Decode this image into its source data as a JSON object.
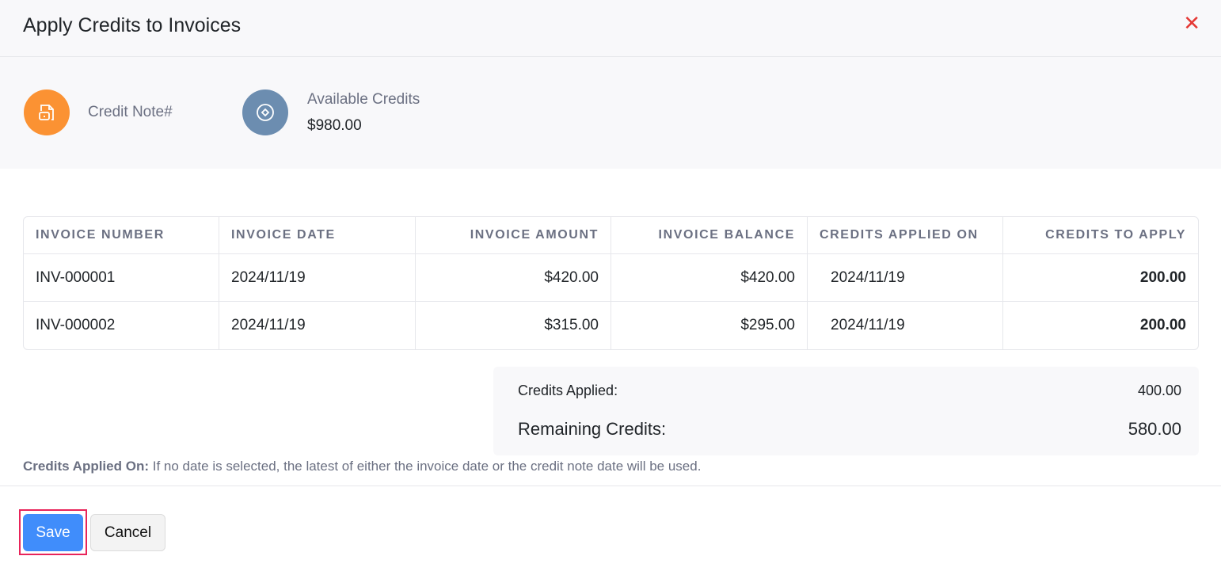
{
  "dialog": {
    "title": "Apply Credits to Invoices",
    "close_icon": "close-icon"
  },
  "info": {
    "credit_note_label": "Credit Note#",
    "available_label": "Available Credits",
    "available_value": "$980.00",
    "colors": {
      "credit_note": "#fb9233",
      "available": "#6c8db0"
    }
  },
  "table": {
    "headers": [
      "INVOICE NUMBER",
      "INVOICE DATE",
      "INVOICE AMOUNT",
      "INVOICE BALANCE",
      "CREDITS APPLIED ON",
      "CREDITS TO APPLY"
    ],
    "rows": [
      [
        "INV-000001",
        "2024/11/19",
        "$420.00",
        "$420.00",
        "2024/11/19",
        "200.00"
      ],
      [
        "INV-000002",
        "2024/11/19",
        "$315.00",
        "$295.00",
        "2024/11/19",
        "200.00"
      ]
    ]
  },
  "summary": {
    "applied_label": "Credits Applied:",
    "applied_value": "400.00",
    "remaining_label": "Remaining Credits:",
    "remaining_value": "580.00"
  },
  "note": {
    "bold": "Credits Applied On:",
    "text": " If no date is selected, the latest of either the invoice date or the credit note date will be used."
  },
  "footer": {
    "save": "Save",
    "cancel": "Cancel"
  }
}
